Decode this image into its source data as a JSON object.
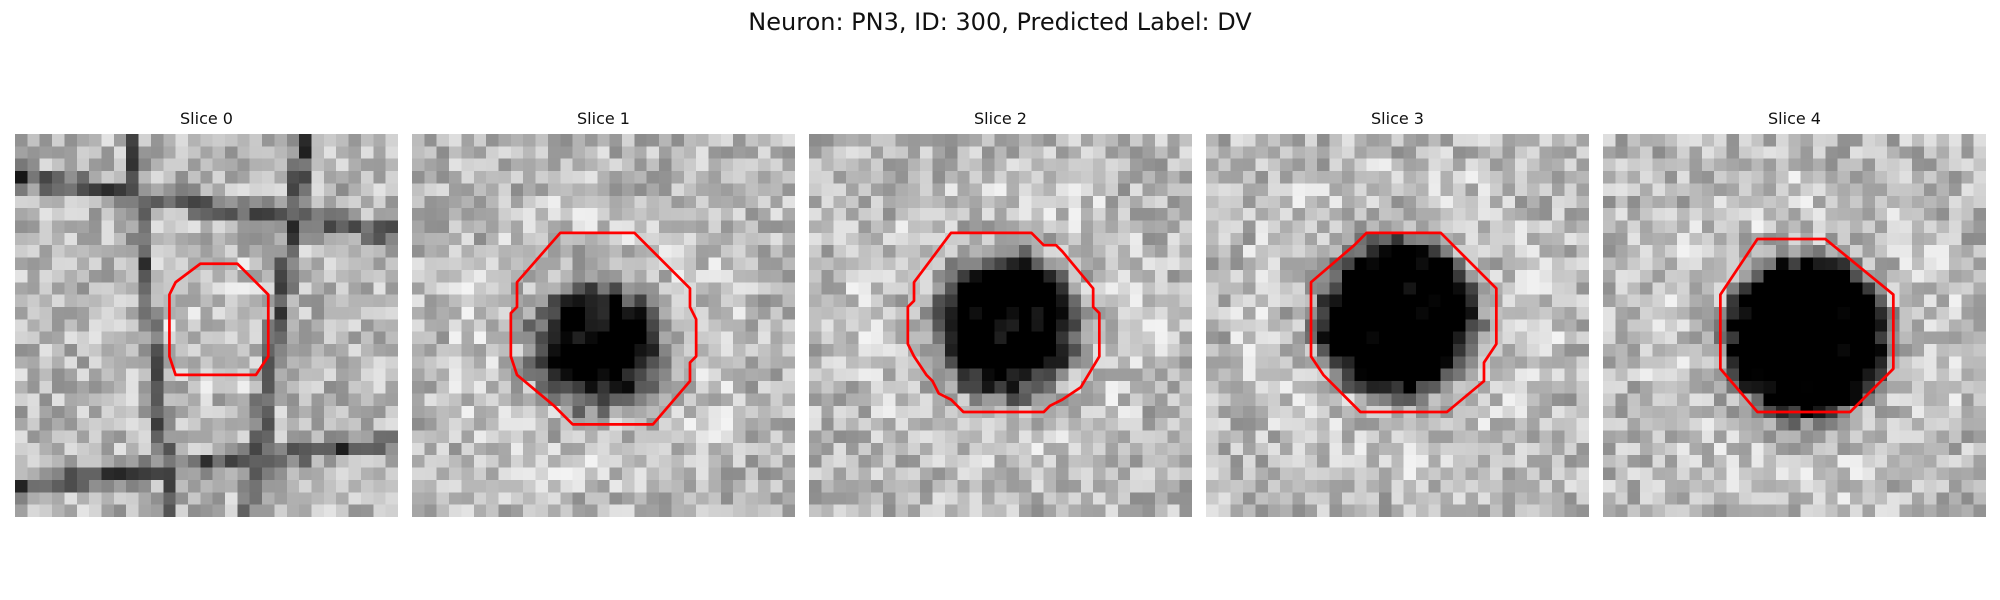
{
  "figure": {
    "title": "Neuron: PN3, ID: 300, Predicted Label: DV"
  },
  "colors": {
    "contour": "#ff0000",
    "image_cmap": "grayscale"
  },
  "panels": [
    {
      "title": "Slice 0"
    },
    {
      "title": "Slice 1"
    },
    {
      "title": "Slice 2"
    },
    {
      "title": "Slice 3"
    },
    {
      "title": "Slice 4"
    }
  ]
}
